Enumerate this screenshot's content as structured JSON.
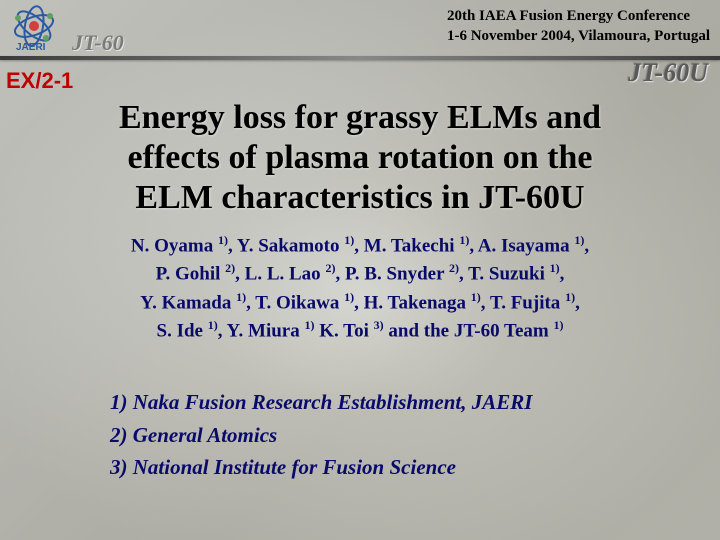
{
  "header": {
    "conference_line1": "20th IAEA Fusion Energy Conference",
    "conference_line2": "1-6 November 2004, Vilamoura, Portugal",
    "device_left": "JT-60",
    "device_right": "JT-60U",
    "logo_text": "JAERI"
  },
  "session_id": "EX/2-1",
  "title_lines": [
    "Energy loss for grassy ELMs and",
    "effects of plasma rotation on the",
    "ELM characteristics in JT-60U"
  ],
  "authors_html": "N. Oyama <sup>1)</sup>, Y. Sakamoto <sup>1)</sup>, M. Takechi <sup>1)</sup>, A. Isayama <sup>1)</sup>,<br>P. Gohil <sup>2)</sup>, L. L. Lao <sup>2)</sup>, P. B. Snyder <sup>2)</sup>, T. Suzuki <sup>1)</sup>,<br>Y. Kamada <sup>1)</sup>, T. Oikawa <sup>1)</sup>, H. Takenaga <sup>1)</sup>, T. Fujita <sup>1)</sup>,<br>S. Ide <sup>1)</sup>, Y. Miura <sup>1)</sup> K. Toi <sup>3)</sup> and the JT-60 Team <sup>1)</sup>",
  "affiliations": [
    "1) Naka Fusion Research Establishment, JAERI",
    "2) General Atomics",
    "3) National Institute for Fusion Science"
  ],
  "colors": {
    "session_id": "#c00000",
    "text_blue": "#0a0a6a",
    "title_black": "#000000",
    "divider": "#3a3a3a"
  },
  "fonts": {
    "title_size_pt": 26,
    "authors_size_pt": 14,
    "affil_size_pt": 16,
    "conf_size_pt": 11
  }
}
